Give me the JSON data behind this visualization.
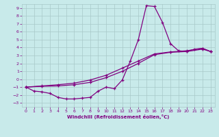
{
  "bg_color": "#c8eaea",
  "line_color": "#800080",
  "grid_color": "#a8c8c8",
  "xlabel": "Windchill (Refroidissement éolien,°C)",
  "xlim": [
    -0.5,
    23.5
  ],
  "ylim": [
    -3.5,
    9.5
  ],
  "xticks": [
    0,
    1,
    2,
    3,
    4,
    5,
    6,
    7,
    8,
    9,
    10,
    11,
    12,
    13,
    14,
    15,
    16,
    17,
    18,
    19,
    20,
    21,
    22,
    23
  ],
  "yticks": [
    -3,
    -2,
    -1,
    0,
    1,
    2,
    3,
    4,
    5,
    6,
    7,
    8,
    9
  ],
  "line1_x": [
    0,
    1,
    2,
    3,
    4,
    5,
    6,
    7,
    8,
    9,
    10,
    11,
    12,
    13,
    14,
    15,
    16,
    17,
    18,
    19,
    20,
    21,
    22,
    23
  ],
  "line1_y": [
    -1,
    -1.5,
    -1.6,
    -1.8,
    -2.3,
    -2.5,
    -2.5,
    -2.4,
    -2.3,
    -1.5,
    -1.0,
    -1.2,
    -0.1,
    2.3,
    5.0,
    9.3,
    9.2,
    7.2,
    4.5,
    3.6,
    3.5,
    3.8,
    3.9,
    3.5
  ],
  "line2_x": [
    0,
    2,
    4,
    6,
    8,
    10,
    12,
    14,
    16,
    18,
    20,
    22,
    23
  ],
  "line2_y": [
    -1,
    -0.9,
    -0.85,
    -0.7,
    -0.4,
    0.2,
    1.0,
    2.0,
    3.1,
    3.4,
    3.5,
    3.8,
    3.5
  ],
  "line3_x": [
    0,
    2,
    4,
    6,
    8,
    10,
    12,
    14,
    16,
    18,
    20,
    22,
    23
  ],
  "line3_y": [
    -1,
    -0.85,
    -0.7,
    -0.5,
    -0.1,
    0.5,
    1.4,
    2.3,
    3.2,
    3.45,
    3.6,
    3.9,
    3.5
  ]
}
